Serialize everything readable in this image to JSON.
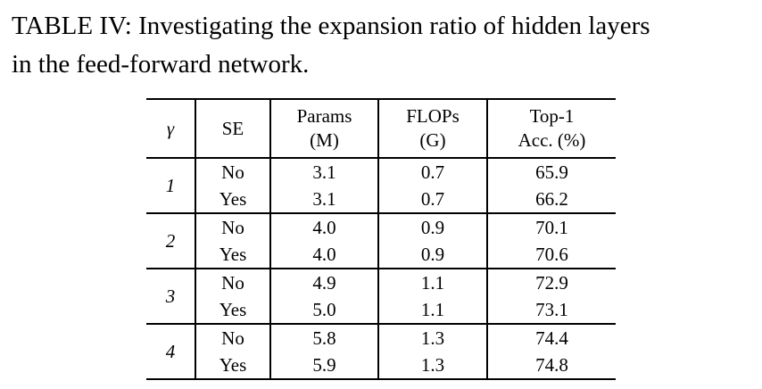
{
  "caption": {
    "line1": "TABLE IV: Investigating the expansion ratio of hidden layers",
    "line2": "in the feed-forward network.",
    "full_text": "TABLE IV: Investigating the expansion ratio of hidden layers in the feed-forward network."
  },
  "table": {
    "headers": {
      "gamma": "γ",
      "se": "SE",
      "params_line1": "Params",
      "params_line2": "(M)",
      "flops_line1": "FLOPs",
      "flops_line2": "(G)",
      "top1_line1": "Top-1",
      "top1_line2": "Acc. (%)"
    },
    "groups": [
      {
        "gamma": "1",
        "rows": [
          {
            "se": "No",
            "params": "3.1",
            "flops": "0.7",
            "acc": "65.9"
          },
          {
            "se": "Yes",
            "params": "3.1",
            "flops": "0.7",
            "acc": "66.2"
          }
        ]
      },
      {
        "gamma": "2",
        "rows": [
          {
            "se": "No",
            "params": "4.0",
            "flops": "0.9",
            "acc": "70.1"
          },
          {
            "se": "Yes",
            "params": "4.0",
            "flops": "0.9",
            "acc": "70.6"
          }
        ]
      },
      {
        "gamma": "3",
        "rows": [
          {
            "se": "No",
            "params": "4.9",
            "flops": "1.1",
            "acc": "72.9"
          },
          {
            "se": "Yes",
            "params": "5.0",
            "flops": "1.1",
            "acc": "73.1"
          }
        ]
      },
      {
        "gamma": "4",
        "rows": [
          {
            "se": "No",
            "params": "5.8",
            "flops": "1.3",
            "acc": "74.4"
          },
          {
            "se": "Yes",
            "params": "5.9",
            "flops": "1.3",
            "acc": "74.8"
          }
        ]
      }
    ]
  },
  "chart_data": {
    "type": "table",
    "title": "TABLE IV: Investigating the expansion ratio of hidden layers in the feed-forward network.",
    "columns": [
      "γ",
      "SE",
      "Params (M)",
      "FLOPs (G)",
      "Top-1 Acc. (%)"
    ],
    "rows": [
      [
        "1",
        "No",
        3.1,
        0.7,
        65.9
      ],
      [
        "1",
        "Yes",
        3.1,
        0.7,
        66.2
      ],
      [
        "2",
        "No",
        4.0,
        0.9,
        70.1
      ],
      [
        "2",
        "Yes",
        4.0,
        0.9,
        70.6
      ],
      [
        "3",
        "No",
        4.9,
        1.1,
        72.9
      ],
      [
        "3",
        "Yes",
        5.0,
        1.1,
        73.1
      ],
      [
        "4",
        "No",
        5.8,
        1.3,
        74.4
      ],
      [
        "4",
        "Yes",
        5.9,
        1.3,
        74.8
      ]
    ]
  }
}
